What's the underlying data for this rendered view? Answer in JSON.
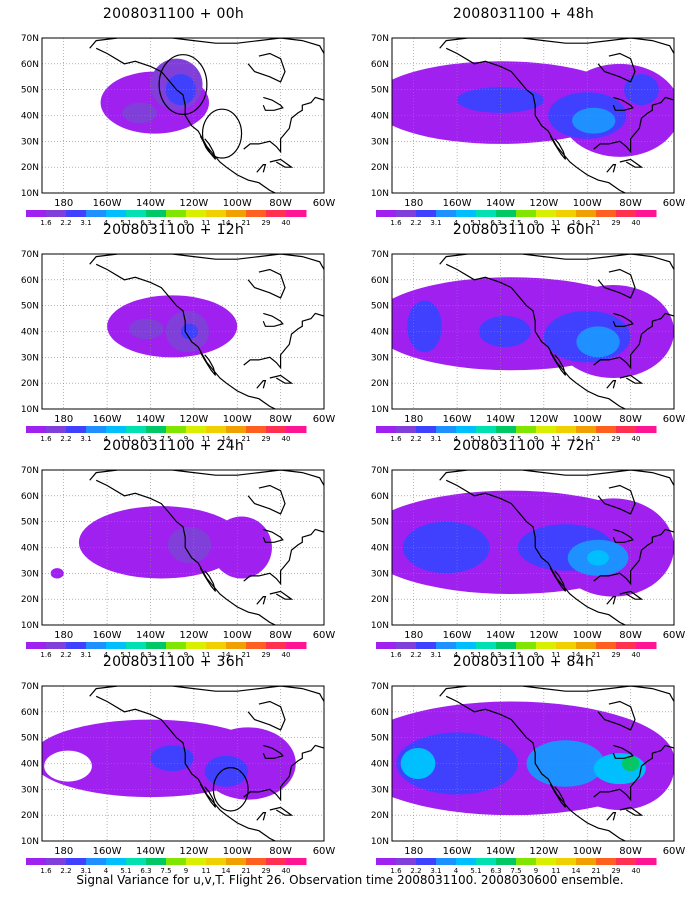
{
  "caption": "Signal Variance for u,v,T. Flight 26. Observation time 2008031100. 2008030600 ensemble.",
  "panels": [
    {
      "title": "2008031100 + 00h",
      "blobs": [
        {
          "cx": -138,
          "cy": 45,
          "rx": 25,
          "ry": 12,
          "level": 0
        },
        {
          "cx": -128,
          "cy": 52,
          "rx": 12,
          "ry": 10,
          "level": 1
        },
        {
          "cx": -126,
          "cy": 50,
          "rx": 7,
          "ry": 6,
          "level": 2
        },
        {
          "cx": -145,
          "cy": 41,
          "rx": 8,
          "ry": 4,
          "level": 1
        }
      ],
      "circles": [
        {
          "cx": -125,
          "cy": 52,
          "r": 11
        },
        {
          "cx": -107,
          "cy": 33,
          "r": 9
        }
      ]
    },
    {
      "title": "2008031100 + 48h",
      "blobs": [
        {
          "cx": -140,
          "cy": 45,
          "rx": 60,
          "ry": 16,
          "level": 0
        },
        {
          "cx": -85,
          "cy": 42,
          "rx": 28,
          "ry": 18,
          "level": 0
        },
        {
          "cx": -140,
          "cy": 46,
          "rx": 20,
          "ry": 5,
          "level": 2
        },
        {
          "cx": -100,
          "cy": 40,
          "rx": 18,
          "ry": 9,
          "level": 2
        },
        {
          "cx": -97,
          "cy": 38,
          "rx": 10,
          "ry": 5,
          "level": 3
        },
        {
          "cx": -75,
          "cy": 50,
          "rx": 8,
          "ry": 6,
          "level": 2
        }
      ],
      "circles": []
    },
    {
      "title": "2008031100 + 12h",
      "blobs": [
        {
          "cx": -130,
          "cy": 42,
          "rx": 30,
          "ry": 12,
          "level": 0
        },
        {
          "cx": -123,
          "cy": 40,
          "rx": 10,
          "ry": 8,
          "level": 1
        },
        {
          "cx": -142,
          "cy": 41,
          "rx": 8,
          "ry": 4,
          "level": 1
        },
        {
          "cx": -122,
          "cy": 40,
          "rx": 4,
          "ry": 3,
          "level": 2
        }
      ],
      "circles": []
    },
    {
      "title": "2008031100 + 60h",
      "blobs": [
        {
          "cx": -135,
          "cy": 43,
          "rx": 65,
          "ry": 18,
          "level": 0
        },
        {
          "cx": -88,
          "cy": 40,
          "rx": 28,
          "ry": 18,
          "level": 0
        },
        {
          "cx": -175,
          "cy": 42,
          "rx": 8,
          "ry": 10,
          "level": 2
        },
        {
          "cx": -100,
          "cy": 38,
          "rx": 20,
          "ry": 10,
          "level": 2
        },
        {
          "cx": -95,
          "cy": 36,
          "rx": 10,
          "ry": 6,
          "level": 3
        },
        {
          "cx": -138,
          "cy": 40,
          "rx": 12,
          "ry": 6,
          "level": 2
        }
      ],
      "circles": []
    },
    {
      "title": "2008031100 + 24h",
      "blobs": [
        {
          "cx": -135,
          "cy": 42,
          "rx": 38,
          "ry": 14,
          "level": 0
        },
        {
          "cx": -98,
          "cy": 40,
          "rx": 14,
          "ry": 12,
          "level": 0
        },
        {
          "cx": -122,
          "cy": 41,
          "rx": 10,
          "ry": 7,
          "level": 1
        },
        {
          "cx": -183,
          "cy": 30,
          "rx": 3,
          "ry": 2,
          "level": 0
        }
      ],
      "circles": []
    },
    {
      "title": "2008031100 + 72h",
      "blobs": [
        {
          "cx": -135,
          "cy": 42,
          "rx": 70,
          "ry": 20,
          "level": 0
        },
        {
          "cx": -88,
          "cy": 40,
          "rx": 28,
          "ry": 19,
          "level": 0
        },
        {
          "cx": -165,
          "cy": 40,
          "rx": 20,
          "ry": 10,
          "level": 2
        },
        {
          "cx": -110,
          "cy": 40,
          "rx": 22,
          "ry": 9,
          "level": 2
        },
        {
          "cx": -95,
          "cy": 36,
          "rx": 14,
          "ry": 7,
          "level": 3
        },
        {
          "cx": -95,
          "cy": 36,
          "rx": 5,
          "ry": 3,
          "level": 4
        }
      ],
      "circles": []
    },
    {
      "title": "2008031100 + 36h",
      "blobs": [
        {
          "cx": -140,
          "cy": 42,
          "rx": 55,
          "ry": 15,
          "level": 0
        },
        {
          "cx": -95,
          "cy": 40,
          "rx": 22,
          "ry": 14,
          "level": 0
        },
        {
          "cx": -130,
          "cy": 42,
          "rx": 10,
          "ry": 5,
          "level": 2
        },
        {
          "cx": -105,
          "cy": 37,
          "rx": 10,
          "ry": 6,
          "level": 2
        }
      ],
      "holes": [
        {
          "cx": -178,
          "cy": 39,
          "rx": 11,
          "ry": 6
        }
      ],
      "circles": [
        {
          "cx": -103,
          "cy": 30,
          "r": 8
        }
      ]
    },
    {
      "title": "2008031100 + 84h",
      "blobs": [
        {
          "cx": -135,
          "cy": 42,
          "rx": 75,
          "ry": 22,
          "level": 0
        },
        {
          "cx": -85,
          "cy": 38,
          "rx": 25,
          "ry": 16,
          "level": 0
        },
        {
          "cx": -160,
          "cy": 40,
          "rx": 28,
          "ry": 12,
          "level": 2
        },
        {
          "cx": -110,
          "cy": 40,
          "rx": 18,
          "ry": 9,
          "level": 3
        },
        {
          "cx": -178,
          "cy": 40,
          "rx": 8,
          "ry": 6,
          "level": 4
        },
        {
          "cx": -85,
          "cy": 38,
          "rx": 12,
          "ry": 6,
          "level": 4
        },
        {
          "cx": -80,
          "cy": 40,
          "rx": 4,
          "ry": 3,
          "level": 6
        }
      ],
      "circles": []
    }
  ],
  "lat_labels": [
    "70N",
    "60N",
    "50N",
    "40N",
    "30N",
    "20N",
    "10N"
  ],
  "lon_labels": [
    "180",
    "160W",
    "140W",
    "120W",
    "100W",
    "80W",
    "60W"
  ],
  "colorbar": {
    "labels": [
      "1.6",
      "2.2",
      "3.1",
      "4",
      "5.1",
      "6.3",
      "7.5",
      "9",
      "11",
      "14",
      "21",
      "29",
      "40"
    ],
    "colors": [
      "#a020f0",
      "#7f3fd8",
      "#4040ff",
      "#1e90ff",
      "#00bfff",
      "#00e0b0",
      "#00c864",
      "#80e600",
      "#d8f000",
      "#f0d000",
      "#f0a000",
      "#ff6020",
      "#ff3050",
      "#ff1493"
    ]
  },
  "map": {
    "lon_min": -190,
    "lon_max": -60,
    "lat_min": 10,
    "lat_max": 70,
    "ocean_color": "#ffffff",
    "coast_color": "#000000"
  }
}
